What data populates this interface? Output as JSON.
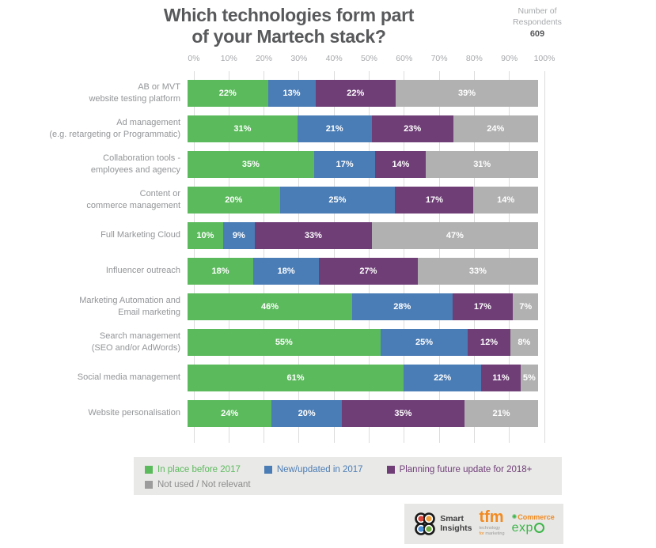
{
  "title": {
    "line1": "Which technologies form part",
    "line2": "of your Martech stack?"
  },
  "respondents": {
    "label_line1": "Number of",
    "label_line2": "Respondents",
    "value": "609"
  },
  "chart_data": {
    "type": "bar",
    "orientation": "horizontal_stacked",
    "title": "Which technologies form part of your Martech stack?",
    "xlim": [
      0,
      100
    ],
    "x_ticks": [
      "0%",
      "10%",
      "20%",
      "30%",
      "40%",
      "50%",
      "60%",
      "70%",
      "80%",
      "90%",
      "100%"
    ],
    "grid": true,
    "value_suffix": "%",
    "legend_position": "bottom",
    "legend_rows": [
      [
        0,
        1,
        2
      ],
      [
        3
      ]
    ],
    "categories": [
      [
        "AB or MVT",
        "website testing platform"
      ],
      [
        "Ad management",
        "(e.g. retargeting or Programmatic)"
      ],
      [
        "Collaboration tools -",
        "employees and agency"
      ],
      [
        "Content or",
        "commerce management"
      ],
      [
        "Full Marketing Cloud"
      ],
      [
        "Influencer outreach"
      ],
      [
        "Marketing Automation and",
        "Email marketing"
      ],
      [
        "Search management",
        "(SEO and/or AdWords)"
      ],
      [
        "Social media management"
      ],
      [
        "Website personalisation"
      ]
    ],
    "series": [
      {
        "name": "In place before 2017",
        "color": "#5bba5c",
        "values": [
          22,
          31,
          35,
          20,
          10,
          18,
          46,
          55,
          61,
          24
        ]
      },
      {
        "name": "New/updated in 2017",
        "color": "#4a7cb5",
        "values": [
          13,
          21,
          17,
          25,
          9,
          18,
          28,
          25,
          22,
          20
        ]
      },
      {
        "name": "Planning future update for 2018+",
        "color": "#6f3e77",
        "values": [
          22,
          23,
          14,
          17,
          33,
          27,
          17,
          12,
          11,
          35
        ]
      },
      {
        "name": "Not used / Not relevant",
        "color": "#b1b1b1",
        "values": [
          39,
          24,
          31,
          14,
          47,
          33,
          7,
          8,
          5,
          21
        ]
      }
    ]
  },
  "colors": {
    "grid_line": "#dcdcdc",
    "title_text": "#58595b",
    "tick_text": "#a7a9ac",
    "category_text": "#939598",
    "legend_bg": "#e9e9e7",
    "legend_grey_text": "#8c8c8c"
  },
  "footer": {
    "smart_insights": {
      "line1": "Smart",
      "line2": "Insights"
    },
    "tfm": {
      "name": "tfm",
      "sub_line1": "technology",
      "sub_for": "for",
      "sub_rest": "marketing"
    },
    "ecommerce_expo": {
      "top_text": "Commerce",
      "bottom_text": "expo"
    }
  }
}
